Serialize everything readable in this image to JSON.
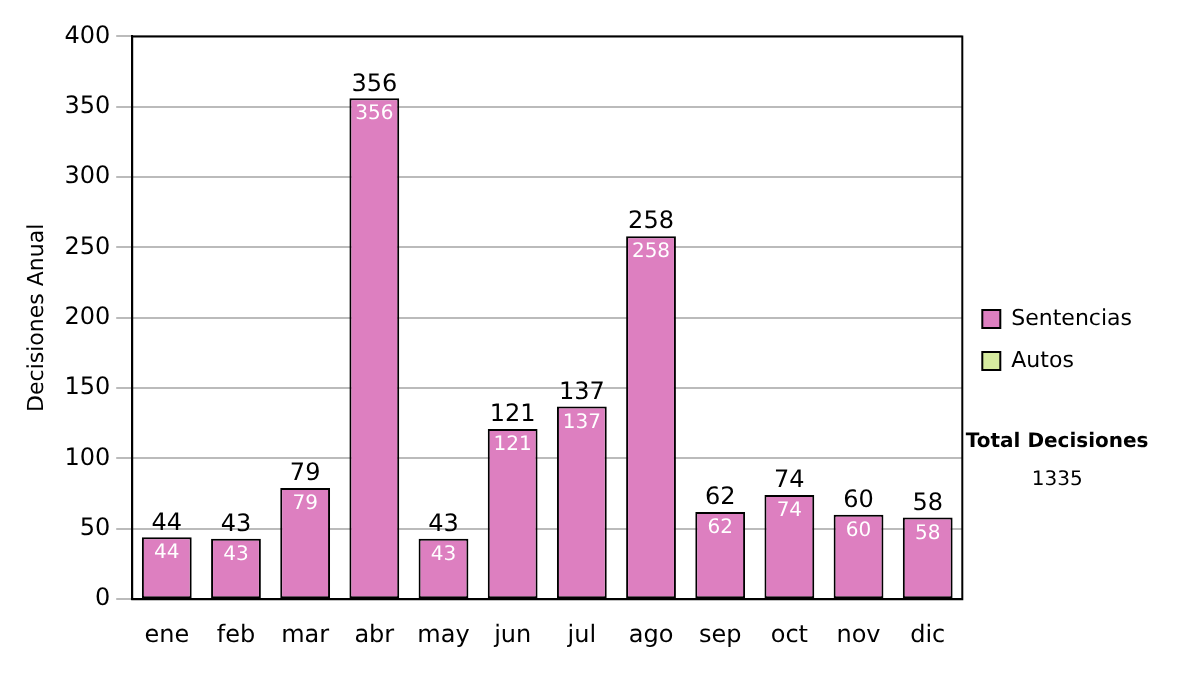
{
  "chart_data": {
    "type": "bar",
    "ylabel": "Decisiones Anual",
    "categories": [
      "ene",
      "feb",
      "mar",
      "abr",
      "may",
      "jun",
      "jul",
      "ago",
      "sep",
      "oct",
      "nov",
      "dic"
    ],
    "series": [
      {
        "name": "Sentencias",
        "color": "#dd7fc0",
        "values": [
          44,
          43,
          79,
          356,
          43,
          121,
          137,
          258,
          62,
          74,
          60,
          58
        ]
      },
      {
        "name": "Autos",
        "color": "#d6eba0",
        "values": [
          null,
          null,
          null,
          null,
          null,
          null,
          null,
          null,
          null,
          null,
          null,
          null
        ]
      }
    ],
    "stacked": true,
    "data_labels": true,
    "totals": [
      "44",
      "43",
      "79",
      "356",
      "43",
      "121",
      "137",
      "258",
      "62",
      "74",
      "60",
      "58"
    ],
    "ylim": [
      0,
      400
    ],
    "yticks": [
      0,
      50,
      100,
      150,
      200,
      250,
      300,
      350,
      400
    ],
    "grid": "y",
    "legend": "right",
    "annotations": [
      "Total Decisiones",
      "1335"
    ]
  }
}
